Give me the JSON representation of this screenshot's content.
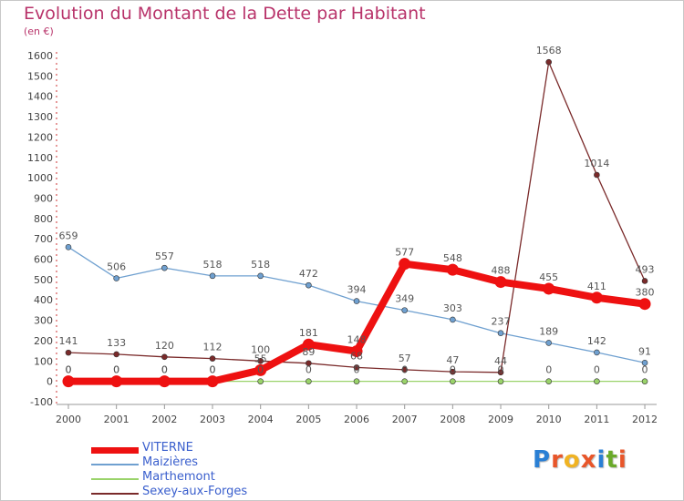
{
  "header": {
    "title": "Evolution du Montant de la Dette par Habitant",
    "subtitle": "(en €)"
  },
  "logo": {
    "text": "Proxiti",
    "colors": [
      "#2a7fd4",
      "#e8562a",
      "#f0b323",
      "#e8562a",
      "#2a7fd4",
      "#6aaa2a",
      "#e8562a"
    ]
  },
  "chart_data": {
    "type": "line",
    "x": [
      "2000",
      "2001",
      "2002",
      "2003",
      "2004",
      "2005",
      "2006",
      "2007",
      "2008",
      "2009",
      "2010",
      "2011",
      "2012"
    ],
    "ylim": [
      -100,
      1600
    ],
    "yticks": [
      "-100",
      "0",
      "100",
      "200",
      "300",
      "400",
      "500",
      "600",
      "700",
      "800",
      "900",
      "1000",
      "1100",
      "1200",
      "1300",
      "1400",
      "1500",
      "1600"
    ],
    "grid": false,
    "legend_position": "bottom-left",
    "series": [
      {
        "name": "VITERNE",
        "color": "#ee1111",
        "values": [
          0,
          0,
          0,
          0,
          55,
          181,
          148,
          577,
          548,
          488,
          455,
          411,
          380
        ],
        "labels": [
          "0",
          "0",
          "0",
          "0",
          "55",
          "181",
          "148",
          "577",
          "548",
          "488",
          "455",
          "411",
          "380"
        ]
      },
      {
        "name": "Maizières",
        "color": "#6fa0d0",
        "values": [
          659,
          506,
          557,
          518,
          518,
          472,
          394,
          349,
          303,
          237,
          189,
          142,
          91
        ],
        "labels": [
          "659",
          "506",
          "557",
          "518",
          "518",
          "472",
          "394",
          "349",
          "303",
          "237",
          "189",
          "142",
          "91"
        ]
      },
      {
        "name": "Marthemont",
        "color": "#9ad36a",
        "values": [
          0,
          0,
          0,
          0,
          0,
          0,
          0,
          0,
          0,
          0,
          0,
          0,
          0
        ],
        "labels": [
          "0",
          "0",
          "0",
          "0",
          "0",
          "0",
          "0",
          "0",
          "0",
          "0",
          "0",
          "0",
          "0"
        ]
      },
      {
        "name": "Sexey-aux-Forges",
        "color": "#7a2a2a",
        "values": [
          141,
          133,
          120,
          112,
          100,
          89,
          68,
          57,
          47,
          44,
          1568,
          1014,
          493
        ],
        "labels": [
          "141",
          "133",
          "120",
          "112",
          "100",
          "89",
          "68",
          "57",
          "47",
          "44",
          "1568",
          "1014",
          "493"
        ]
      }
    ]
  }
}
